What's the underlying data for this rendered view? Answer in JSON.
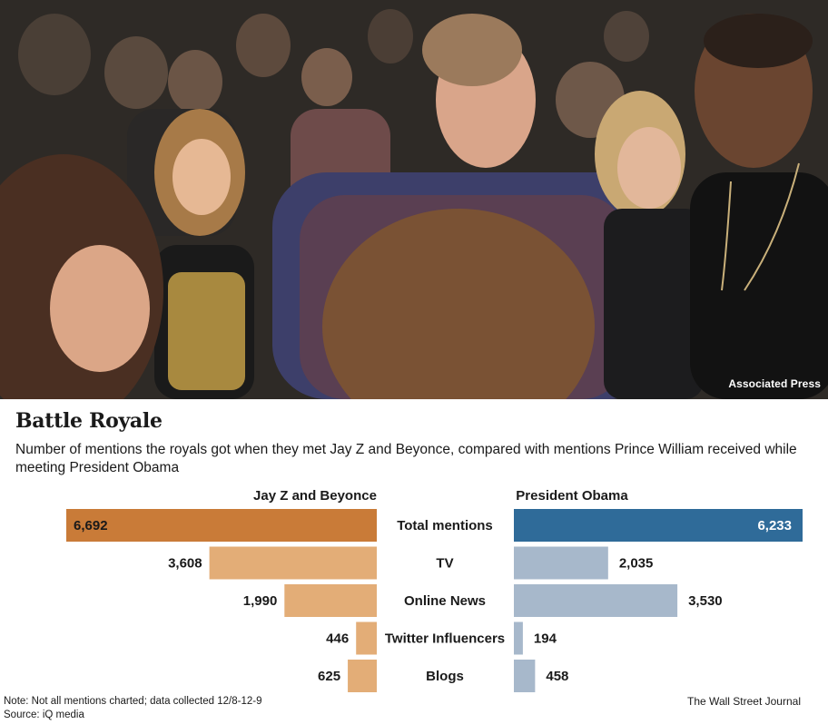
{
  "photo": {
    "credit": "Associated Press"
  },
  "header": {
    "title": "Battle Royale",
    "subtitle": "Number of mentions the royals got when they met Jay Z and Beyonce, compared with mentions Prince William received while meeting President Obama"
  },
  "footer": {
    "note": "Note: Not all mentions charted; data collected 12/8-12-9",
    "source": "Source: iQ media",
    "brand": "The Wall Street Journal"
  },
  "colors": {
    "left_total": "#c97b38",
    "left_other": "#e3ad77",
    "right_total": "#2f6b99",
    "right_other": "#a7b8cb"
  },
  "chart_data": {
    "type": "bar",
    "orientation": "horizontal",
    "layout": "butterfly",
    "categories": [
      "Total mentions",
      "TV",
      "Online News",
      "Twitter Influencers",
      "Blogs"
    ],
    "series": [
      {
        "name": "Jay Z and Beyonce",
        "values": [
          6692,
          3608,
          1990,
          446,
          625
        ],
        "labels": [
          "6,692",
          "3,608",
          "1,990",
          "446",
          "625"
        ]
      },
      {
        "name": "President Obama",
        "values": [
          6233,
          2035,
          3530,
          194,
          458
        ],
        "labels": [
          "6,233",
          "2,035",
          "3,530",
          "194",
          "458"
        ]
      }
    ],
    "xlim": [
      0,
      6692
    ],
    "grid": false
  }
}
